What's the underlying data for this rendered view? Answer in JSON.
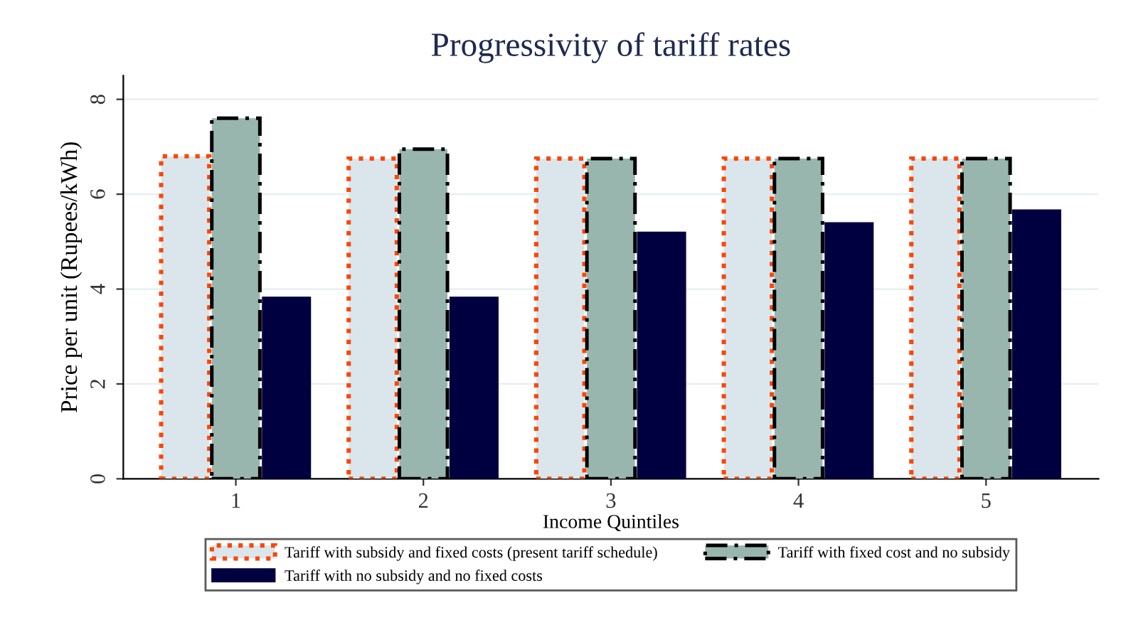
{
  "chart_data": {
    "type": "bar",
    "title": "Progressivity of tariff rates",
    "xlabel": "Income Quintiles",
    "ylabel": "Price per unit (Rupees/kWh)",
    "categories": [
      "1",
      "2",
      "3",
      "4",
      "5"
    ],
    "series": [
      {
        "name": "Tariff with subsidy and fixed costs (present tariff schedule)",
        "color": "#dae6ec",
        "line_style": "dotted",
        "values": [
          6.8,
          6.75,
          6.75,
          6.75,
          6.75
        ]
      },
      {
        "name": "Tariff with fixed cost and no subsidy",
        "color": "#98b6ae",
        "line_style": "dashed",
        "values": [
          7.6,
          6.95,
          6.75,
          6.75,
          6.75
        ]
      },
      {
        "name": "Tariff with no subsidy and no fixed costs",
        "color": "#000040",
        "line_style": "solid",
        "values": [
          3.83,
          3.83,
          5.2,
          5.4,
          5.67
        ]
      }
    ],
    "ylim": [
      0,
      8.5
    ],
    "yticks": [
      0,
      2,
      4,
      6,
      8
    ],
    "grid": "y",
    "legend": "bottom"
  }
}
